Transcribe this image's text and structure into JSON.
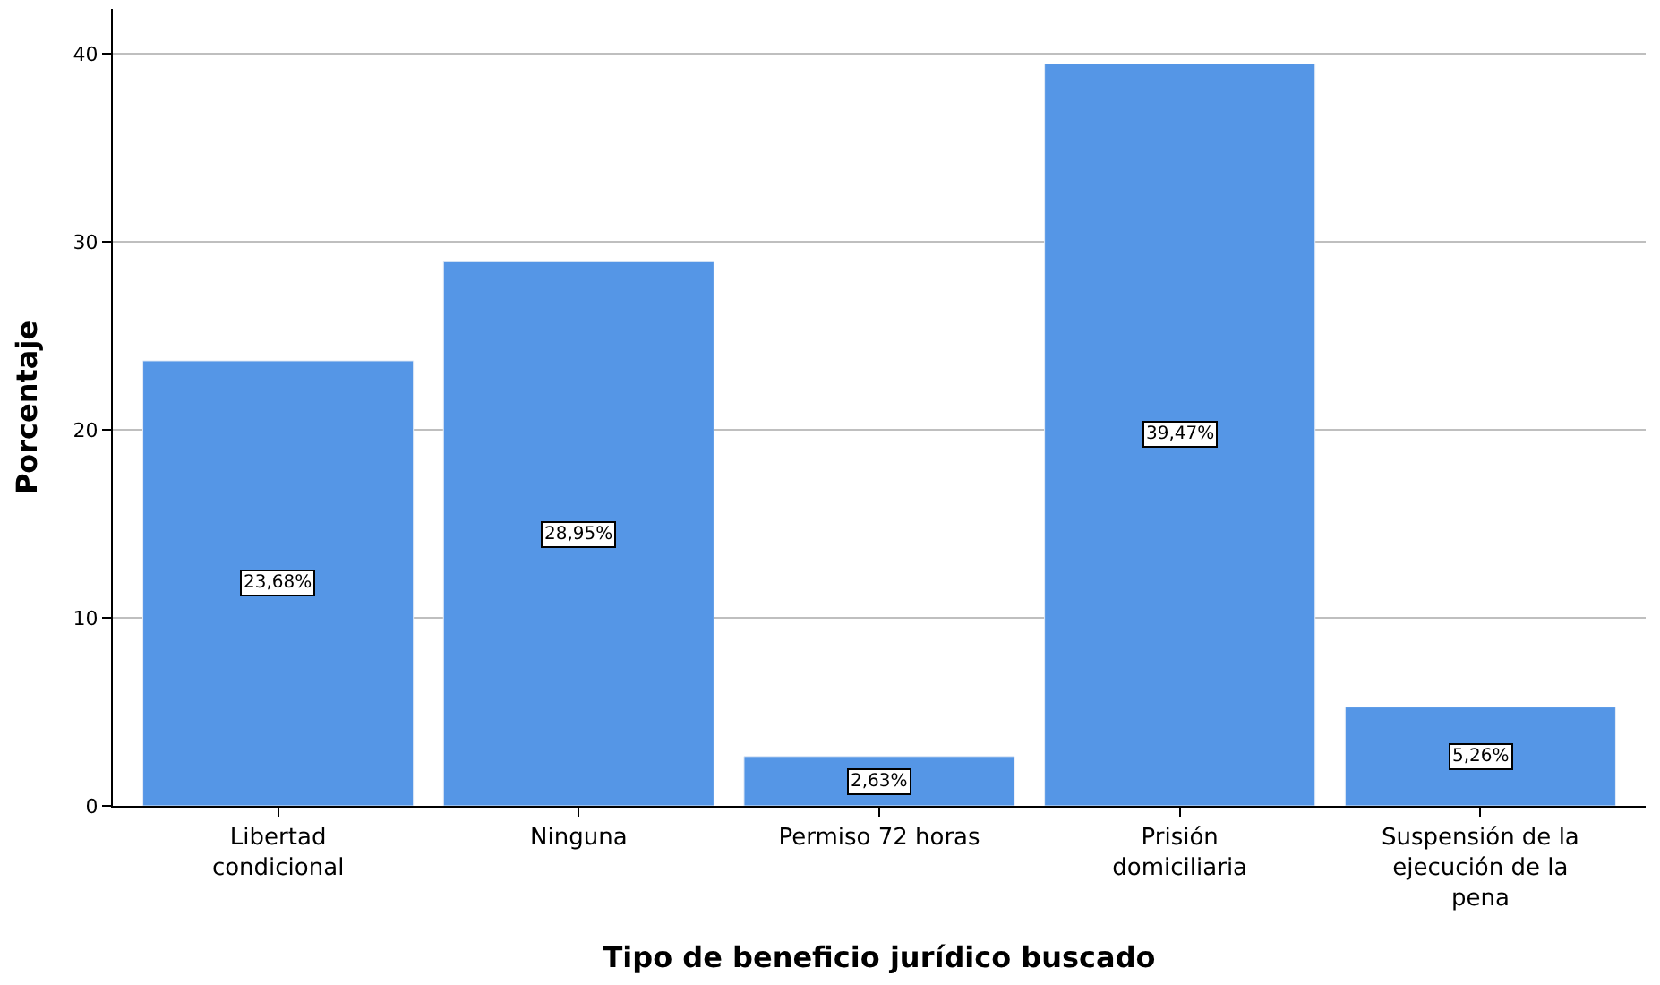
{
  "chart_data": {
    "type": "bar",
    "xlabel": "Tipo de beneficio jurídico buscado",
    "ylabel": "Porcentaje",
    "categories": [
      "Libertad condicional",
      "Ninguna",
      "Permiso 72 horas",
      "Prisión domiciliaria",
      "Suspensión de la ejecución de la pena"
    ],
    "values": [
      23.68,
      28.95,
      2.63,
      39.47,
      5.26
    ],
    "value_labels": [
      "23,68%",
      "28,95%",
      "2,63%",
      "39,47%",
      "5,26%"
    ],
    "color": "#5596e6",
    "ylim": [
      0,
      42.4
    ],
    "yticks": [
      0,
      10,
      20,
      30,
      40
    ],
    "grid": "y"
  }
}
